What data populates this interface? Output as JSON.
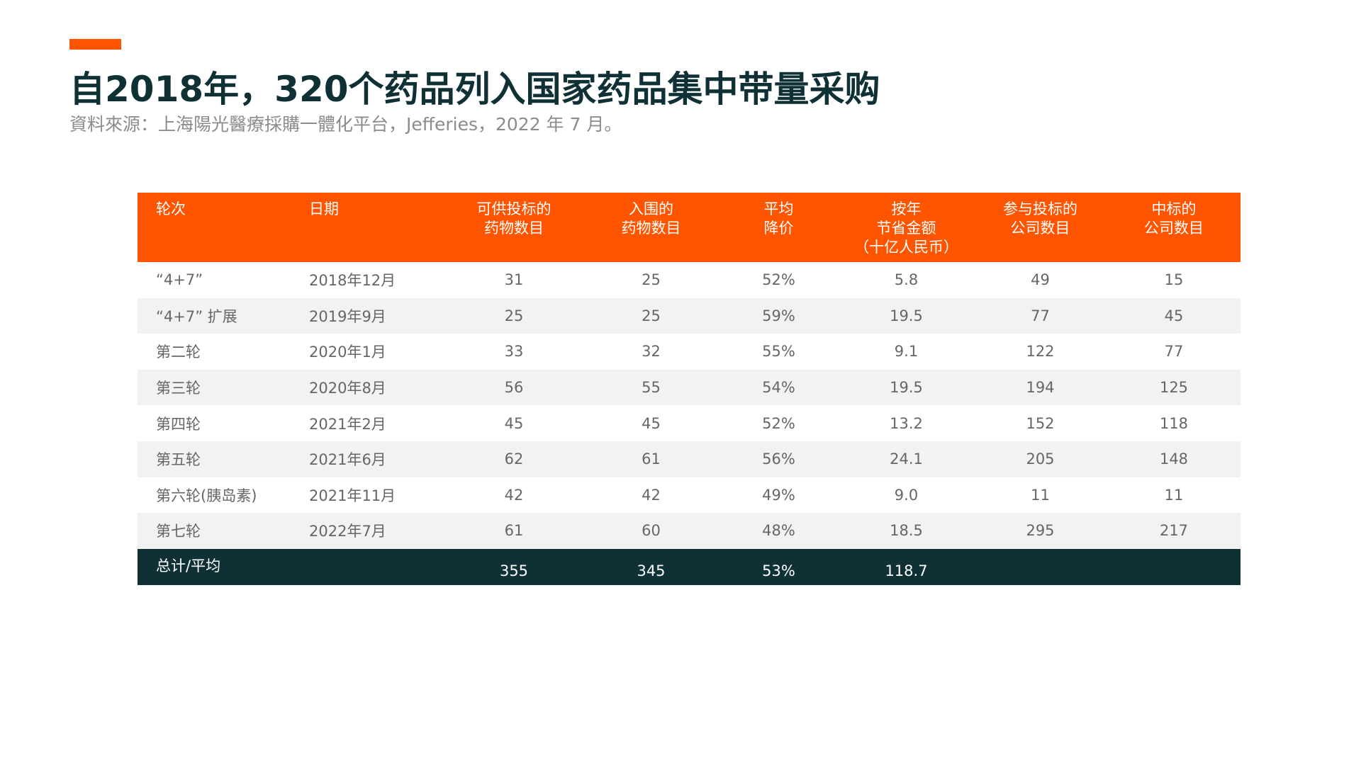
{
  "title": "自2018年，320个药品列入国家药品集中带量采购",
  "source": "資料來源：上海陽光醫療採購一體化平台，Jefferies，2022 年 7 月。",
  "colors": {
    "accent": "#FF5500",
    "dark": "#0F3136",
    "stripe": "#F2F2F2"
  },
  "table": {
    "headers": [
      "轮次",
      "日期",
      "可供投标的\n药物数目",
      "入围的\n药物数目",
      "平均\n降价",
      "按年\n节省金额\n（十亿人民币）",
      "参与投标的\n公司数目",
      "中标的\n公司数目"
    ],
    "rows": [
      [
        "“4+7”",
        "2018年12月",
        "31",
        "25",
        "52%",
        "5.8",
        "49",
        "15"
      ],
      [
        "“4+7” 扩展",
        "2019年9月",
        "25",
        "25",
        "59%",
        "19.5",
        "77",
        "45"
      ],
      [
        "第二轮",
        "2020年1月",
        "33",
        "32",
        "55%",
        "9.1",
        "122",
        "77"
      ],
      [
        "第三轮",
        "2020年8月",
        "56",
        "55",
        "54%",
        "19.5",
        "194",
        "125"
      ],
      [
        "第四轮",
        "2021年2月",
        "45",
        "45",
        "52%",
        "13.2",
        "152",
        "118"
      ],
      [
        "第五轮",
        "2021年6月",
        "62",
        "61",
        "56%",
        "24.1",
        "205",
        "148"
      ],
      [
        "第六轮(胰岛素)",
        "2021年11月",
        "42",
        "42",
        "49%",
        "9.0",
        "11",
        "11"
      ],
      [
        "第七轮",
        "2022年7月",
        "61",
        "60",
        "48%",
        "18.5",
        "295",
        "217"
      ]
    ],
    "total": [
      "总计/平均",
      "",
      "355",
      "345",
      "53%",
      "118.7",
      "",
      ""
    ]
  }
}
